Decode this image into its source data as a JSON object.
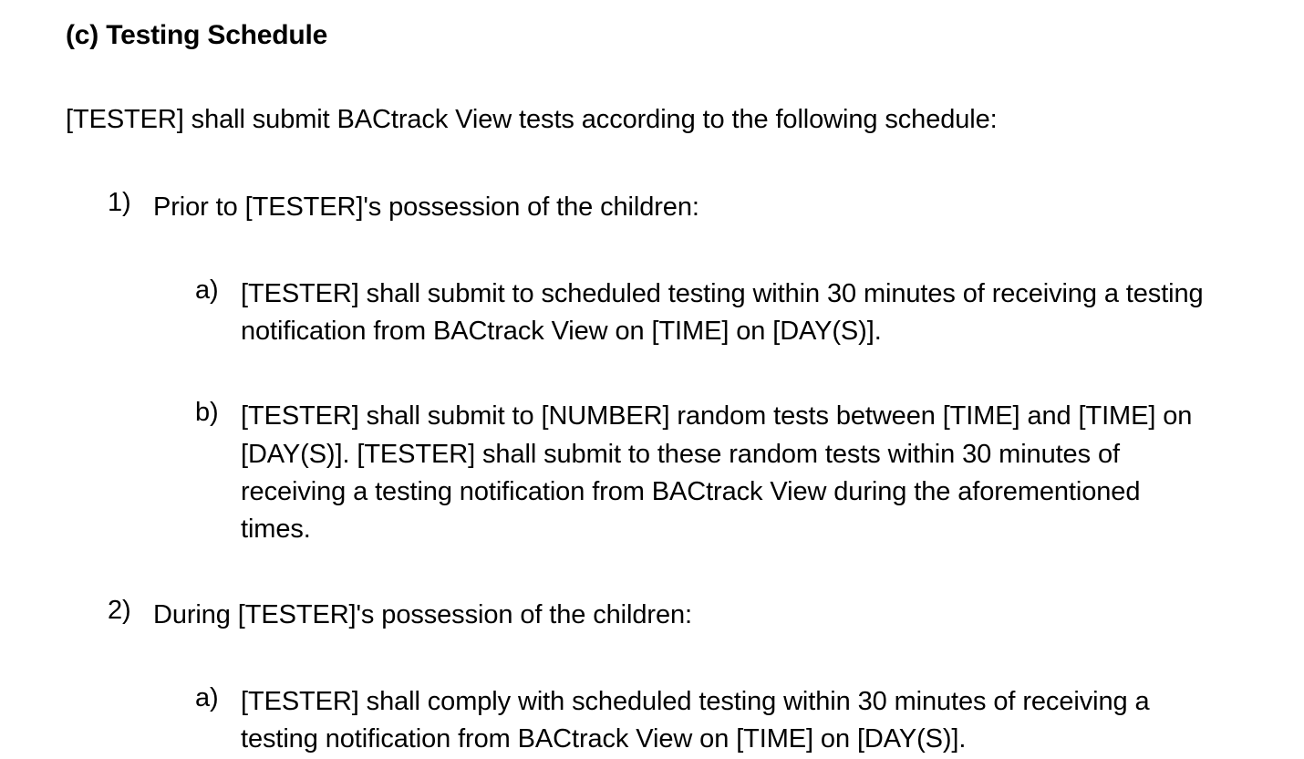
{
  "heading": "(c) Testing Schedule",
  "intro": "[TESTER] shall submit BACtrack View tests according to the following schedule:",
  "items": [
    {
      "marker": "1)",
      "text": "Prior to [TESTER]'s possession of the children:",
      "subitems": [
        {
          "marker": "a)",
          "text": "[TESTER] shall submit to scheduled testing within 30 minutes of receiving a testing notification from BACtrack View on [TIME] on [DAY(S)]."
        },
        {
          "marker": "b)",
          "text": "[TESTER] shall submit to [NUMBER] random tests between [TIME] and [TIME] on [DAY(S)]. [TESTER] shall submit to these random tests within 30 minutes of receiving a testing notification from BACtrack View during the aforementioned times."
        }
      ]
    },
    {
      "marker": "2)",
      "text": "During [TESTER]'s possession of the children:",
      "subitems": [
        {
          "marker": "a)",
          "text": "[TESTER] shall comply with scheduled testing within 30 minutes of receiving a testing notification from BACtrack View on [TIME] on [DAY(S)]."
        }
      ]
    }
  ],
  "styling": {
    "background_color": "#ffffff",
    "text_color": "#000000",
    "heading_fontsize": 30,
    "heading_fontweight": 700,
    "body_fontsize": 29,
    "body_fontweight": 400,
    "line_height": 1.42,
    "indent_level_1": 46,
    "indent_level_2": 142,
    "marker_width": 50
  }
}
